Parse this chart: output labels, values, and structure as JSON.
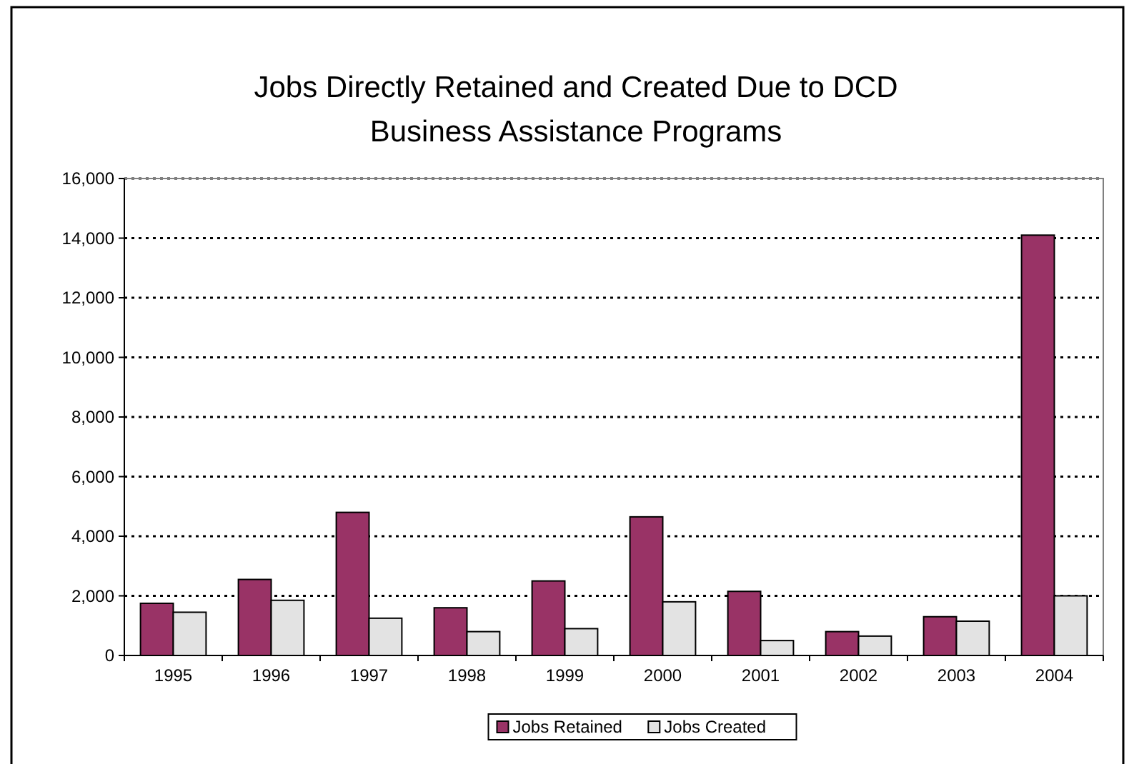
{
  "chart_data": {
    "type": "bar",
    "title": "Jobs Directly Retained and Created Due to DCD Business Assistance Programs",
    "categories": [
      "1995",
      "1996",
      "1997",
      "1998",
      "1999",
      "2000",
      "2001",
      "2002",
      "2003",
      "2004"
    ],
    "series": [
      {
        "name": "Jobs Retained",
        "color": "#993366",
        "values": [
          1750,
          2550,
          4800,
          1600,
          2500,
          4650,
          2150,
          800,
          1300,
          14100
        ]
      },
      {
        "name": "Jobs Created",
        "color": "#e3e3e3",
        "values": [
          1450,
          1850,
          1250,
          800,
          900,
          1800,
          500,
          650,
          1150,
          2000
        ]
      }
    ],
    "ylim": [
      0,
      16000
    ],
    "yticks": [
      {
        "value": 0,
        "label": "0"
      },
      {
        "value": 2000,
        "label": "2,000"
      },
      {
        "value": 4000,
        "label": "4,000"
      },
      {
        "value": 6000,
        "label": "6,000"
      },
      {
        "value": 8000,
        "label": "8,000"
      },
      {
        "value": 10000,
        "label": "10,000"
      },
      {
        "value": 12000,
        "label": "12,000"
      },
      {
        "value": 14000,
        "label": "14,000"
      },
      {
        "value": 16000,
        "label": "16,000"
      }
    ],
    "grid": "y",
    "legend": "bottom"
  }
}
